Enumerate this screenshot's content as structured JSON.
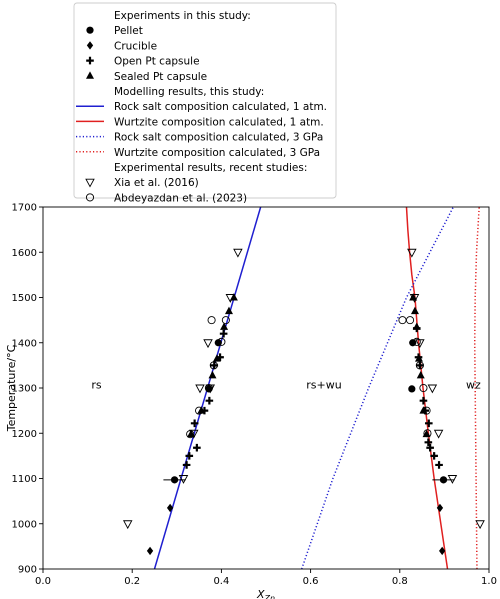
{
  "chart_data": {
    "type": "scatter",
    "title": "",
    "xlabel_main": "X",
    "xlabel_sub": "Zn",
    "ylabel": "Temperature/°C",
    "xlim": [
      0.0,
      1.0
    ],
    "ylim": [
      900,
      1700
    ],
    "xticks": [
      "0.0",
      "0.2",
      "0.4",
      "0.6",
      "0.8",
      "1.0"
    ],
    "xtick_values": [
      0.0,
      0.2,
      0.4,
      0.6,
      0.8,
      1.0
    ],
    "yticks": [
      "900",
      "1000",
      "1100",
      "1200",
      "1300",
      "1400",
      "1500",
      "1600",
      "1700"
    ],
    "ytick_values": [
      900,
      1000,
      1100,
      1200,
      1300,
      1400,
      1500,
      1600,
      1700
    ],
    "grid": false,
    "legend_position": "top, above plot",
    "region_labels": [
      {
        "text": "rs",
        "x": 0.12,
        "y": 1305
      },
      {
        "text": "rs+wu",
        "x": 0.63,
        "y": 1305
      },
      {
        "text": "wz",
        "x": 0.965,
        "y": 1305
      }
    ],
    "legend": {
      "heading_experiments": "Experiments in this study:",
      "heading_modelling": "Modelling results, this study:",
      "heading_recent": "Experimental results, recent studies:",
      "entries": [
        {
          "label": "Pellet",
          "kind": "marker",
          "marker": "circle"
        },
        {
          "label": "Crucible",
          "kind": "marker",
          "marker": "diamond"
        },
        {
          "label": "Open Pt capsule",
          "kind": "marker",
          "marker": "plus"
        },
        {
          "label": "Sealed Pt capsule",
          "kind": "marker",
          "marker": "triangle"
        },
        {
          "label": "Rock salt composition calculated, 1 atm.",
          "kind": "line",
          "color": "#1f1fd0",
          "dash": "solid"
        },
        {
          "label": "Wurtzite composition calculated, 1 atm.",
          "kind": "line",
          "color": "#e02020",
          "dash": "solid"
        },
        {
          "label": "Rock salt composition calculated, 3 GPa",
          "kind": "line",
          "color": "#1f1fd0",
          "dash": "dotted"
        },
        {
          "label": "Wurtzite composition calculated, 3 GPa",
          "kind": "line",
          "color": "#e02020",
          "dash": "dotted"
        },
        {
          "label": "Xia et al. (2016)",
          "kind": "marker",
          "marker": "triangle-down-open"
        },
        {
          "label": "Abdeyazdan et al. (2023)",
          "kind": "marker",
          "marker": "circle-open"
        }
      ]
    },
    "lines": [
      {
        "series": "Rock salt composition calculated, 1 atm.",
        "color": "#1f1fd0",
        "dash": "solid",
        "x": [
          0.25,
          0.488
        ],
        "y": [
          900,
          1700
        ]
      },
      {
        "series": "Wurtzite composition calculated, 1 atm.",
        "color": "#e02020",
        "dash": "solid",
        "x": [
          0.907,
          0.892,
          0.877,
          0.864,
          0.852,
          0.842,
          0.834,
          0.827,
          0.822,
          0.818,
          0.815
        ],
        "y": [
          900,
          1000,
          1100,
          1200,
          1300,
          1400,
          1500,
          1550,
          1600,
          1650,
          1700
        ]
      },
      {
        "series": "Rock salt composition calculated, 3 GPa",
        "color": "#1f1fd0",
        "dash": "dotted",
        "x": [
          0.58,
          0.65,
          0.73,
          0.815,
          0.92
        ],
        "y": [
          900,
          1100,
          1300,
          1500,
          1700
        ]
      },
      {
        "series": "Wurtzite composition calculated, 3 GPa",
        "color": "#e02020",
        "dash": "dotted",
        "x": [
          0.973,
          0.971,
          0.969,
          0.968,
          0.969,
          0.972,
          0.978
        ],
        "y": [
          900,
          1100,
          1300,
          1400,
          1500,
          1600,
          1700
        ]
      }
    ],
    "series": [
      {
        "name": "Pellet",
        "marker": "circle",
        "color": "#000000",
        "points": [
          {
            "x": 0.295,
            "y": 1097,
            "xerr": 0.025
          },
          {
            "x": 0.372,
            "y": 1298
          },
          {
            "x": 0.393,
            "y": 1400
          },
          {
            "x": 0.898,
            "y": 1097,
            "xerr": 0.025
          },
          {
            "x": 0.827,
            "y": 1298
          },
          {
            "x": 0.829,
            "y": 1400
          }
        ]
      },
      {
        "name": "Crucible",
        "marker": "diamond",
        "color": "#000000",
        "points": [
          {
            "x": 0.24,
            "y": 940
          },
          {
            "x": 0.285,
            "y": 1035
          },
          {
            "x": 0.895,
            "y": 940
          },
          {
            "x": 0.89,
            "y": 1035
          }
        ]
      },
      {
        "name": "Open Pt capsule",
        "marker": "plus",
        "color": "#000000",
        "points": [
          {
            "x": 0.322,
            "y": 1130
          },
          {
            "x": 0.328,
            "y": 1150
          },
          {
            "x": 0.345,
            "y": 1168
          },
          {
            "x": 0.34,
            "y": 1222
          },
          {
            "x": 0.362,
            "y": 1250
          },
          {
            "x": 0.373,
            "y": 1272
          },
          {
            "x": 0.384,
            "y": 1350
          },
          {
            "x": 0.397,
            "y": 1368
          },
          {
            "x": 0.405,
            "y": 1420
          },
          {
            "x": 0.888,
            "y": 1130
          },
          {
            "x": 0.877,
            "y": 1150
          },
          {
            "x": 0.868,
            "y": 1168
          },
          {
            "x": 0.865,
            "y": 1222
          },
          {
            "x": 0.857,
            "y": 1250
          },
          {
            "x": 0.853,
            "y": 1272
          },
          {
            "x": 0.845,
            "y": 1350
          },
          {
            "x": 0.842,
            "y": 1368
          },
          {
            "x": 0.838,
            "y": 1432
          },
          {
            "x": 0.864,
            "y": 1180
          }
        ]
      },
      {
        "name": "Sealed Pt capsule",
        "marker": "triangle",
        "color": "#000000",
        "points": [
          {
            "x": 0.332,
            "y": 1198
          },
          {
            "x": 0.355,
            "y": 1250
          },
          {
            "x": 0.38,
            "y": 1328
          },
          {
            "x": 0.39,
            "y": 1365
          },
          {
            "x": 0.406,
            "y": 1435
          },
          {
            "x": 0.417,
            "y": 1470
          },
          {
            "x": 0.428,
            "y": 1500
          },
          {
            "x": 0.86,
            "y": 1198
          },
          {
            "x": 0.853,
            "y": 1250
          },
          {
            "x": 0.847,
            "y": 1328
          },
          {
            "x": 0.843,
            "y": 1365
          },
          {
            "x": 0.838,
            "y": 1435
          },
          {
            "x": 0.834,
            "y": 1470
          },
          {
            "x": 0.83,
            "y": 1500
          }
        ]
      },
      {
        "name": "Xia et al. (2016)",
        "marker": "triangle-down-open",
        "color": "#000000",
        "points": [
          {
            "x": 0.19,
            "y": 1000
          },
          {
            "x": 0.315,
            "y": 1100
          },
          {
            "x": 0.338,
            "y": 1200
          },
          {
            "x": 0.352,
            "y": 1300
          },
          {
            "x": 0.375,
            "y": 1300
          },
          {
            "x": 0.37,
            "y": 1400
          },
          {
            "x": 0.42,
            "y": 1500
          },
          {
            "x": 0.437,
            "y": 1600
          },
          {
            "x": 0.98,
            "y": 1000
          },
          {
            "x": 0.918,
            "y": 1100
          },
          {
            "x": 0.887,
            "y": 1200
          },
          {
            "x": 0.873,
            "y": 1300
          },
          {
            "x": 0.845,
            "y": 1400
          },
          {
            "x": 0.833,
            "y": 1500
          },
          {
            "x": 0.827,
            "y": 1600
          }
        ]
      },
      {
        "name": "Abdeyazdan et al. (2023)",
        "marker": "circle-open",
        "color": "#000000",
        "points": [
          {
            "x": 0.33,
            "y": 1198
          },
          {
            "x": 0.35,
            "y": 1250
          },
          {
            "x": 0.372,
            "y": 1300
          },
          {
            "x": 0.383,
            "y": 1350
          },
          {
            "x": 0.4,
            "y": 1402
          },
          {
            "x": 0.378,
            "y": 1450
          },
          {
            "x": 0.41,
            "y": 1450
          },
          {
            "x": 0.862,
            "y": 1200
          },
          {
            "x": 0.86,
            "y": 1250
          },
          {
            "x": 0.853,
            "y": 1300
          },
          {
            "x": 0.845,
            "y": 1350
          },
          {
            "x": 0.838,
            "y": 1402
          },
          {
            "x": 0.806,
            "y": 1450
          },
          {
            "x": 0.823,
            "y": 1450
          }
        ]
      }
    ]
  }
}
